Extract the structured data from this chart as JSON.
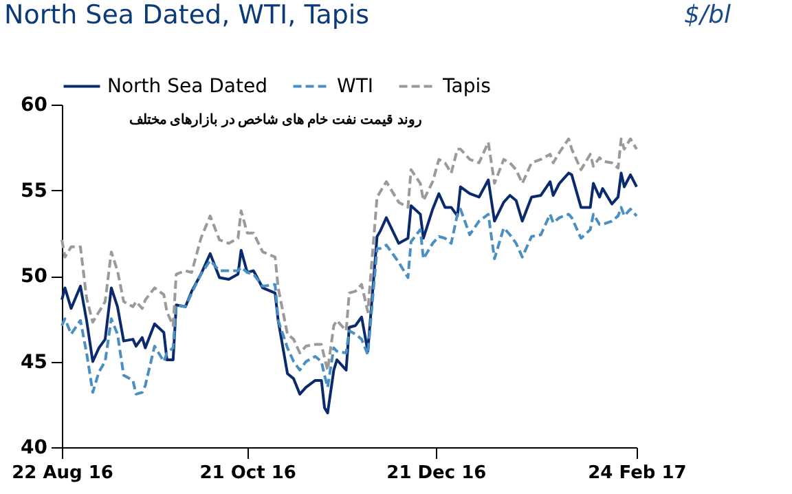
{
  "chart_data": {
    "type": "line",
    "title": "North Sea Dated, WTI, Tapis",
    "ylabel": "$/bl",
    "annotations": [
      "روند قیمت نفت خام های شاخص در بازارهای مختلف"
    ],
    "x": [
      "2016-08-22",
      "2016-08-23",
      "2016-08-25",
      "2016-08-28",
      "2016-08-30",
      "2016-09-01",
      "2016-09-03",
      "2016-09-05",
      "2016-09-07",
      "2016-09-09",
      "2016-09-11",
      "2016-09-14",
      "2016-09-15",
      "2016-09-17",
      "2016-09-18",
      "2016-09-21",
      "2016-09-24",
      "2016-09-25",
      "2016-09-27",
      "2016-09-28",
      "2016-10-01",
      "2016-10-03",
      "2016-10-06",
      "2016-10-09",
      "2016-10-12",
      "2016-10-15",
      "2016-10-18",
      "2016-10-19",
      "2016-10-21",
      "2016-10-23",
      "2016-10-26",
      "2016-10-30",
      "2016-10-31",
      "2016-11-03",
      "2016-11-05",
      "2016-11-07",
      "2016-11-09",
      "2016-11-12",
      "2016-11-14",
      "2016-11-15",
      "2016-11-16",
      "2016-11-18",
      "2016-11-19",
      "2016-11-22",
      "2016-11-23",
      "2016-11-25",
      "2016-11-27",
      "2016-11-29",
      "2016-12-02",
      "2016-12-03",
      "2016-12-05",
      "2016-12-09",
      "2016-12-12",
      "2016-12-13",
      "2016-12-16",
      "2016-12-17",
      "2016-12-20",
      "2016-12-22",
      "2016-12-24",
      "2016-12-26",
      "2016-12-28",
      "2016-12-29",
      "2017-01-01",
      "2017-01-04",
      "2017-01-07",
      "2017-01-09",
      "2017-01-12",
      "2017-01-14",
      "2017-01-16",
      "2017-01-18",
      "2017-01-21",
      "2017-01-24",
      "2017-01-27",
      "2017-01-28",
      "2017-01-30",
      "2017-02-02",
      "2017-02-03",
      "2017-02-06",
      "2017-02-09",
      "2017-02-10",
      "2017-02-12",
      "2017-02-13",
      "2017-02-16",
      "2017-02-18",
      "2017-02-19",
      "2017-02-20",
      "2017-02-22",
      "2017-02-24"
    ],
    "series": [
      {
        "name": "North Sea Dated",
        "color": "#0b2a6e",
        "line_style": "solid",
        "values": [
          48.6,
          49.3,
          48.1,
          49.4,
          47.4,
          45.0,
          45.8,
          46.3,
          49.3,
          48.2,
          46.2,
          46.3,
          45.9,
          46.4,
          45.8,
          47.2,
          46.7,
          45.1,
          45.1,
          48.3,
          48.2,
          49.1,
          50.1,
          51.3,
          49.9,
          49.8,
          50.1,
          51.5,
          50.2,
          50.3,
          49.3,
          49.0,
          47.4,
          44.3,
          44.0,
          43.1,
          43.5,
          43.9,
          43.9,
          42.3,
          42.0,
          44.5,
          45.1,
          44.5,
          47.0,
          47.1,
          47.6,
          45.6,
          52.3,
          52.6,
          53.4,
          51.9,
          52.2,
          54.1,
          53.6,
          52.2,
          53.9,
          54.8,
          54.0,
          54.0,
          53.5,
          55.2,
          54.8,
          54.6,
          55.6,
          53.2,
          54.3,
          54.7,
          54.4,
          53.2,
          54.6,
          54.7,
          55.5,
          54.7,
          55.4,
          56.0,
          55.9,
          54.0,
          54.0,
          55.4,
          54.6,
          55.1,
          54.2,
          54.6,
          56.0,
          55.2,
          55.9,
          55.2
        ]
      },
      {
        "name": "WTI",
        "color": "#4a8fc2",
        "line_style": "dashed",
        "values": [
          47.1,
          47.5,
          46.6,
          47.4,
          45.5,
          43.2,
          44.4,
          45.0,
          47.5,
          46.6,
          44.2,
          43.9,
          43.1,
          43.2,
          43.6,
          45.9,
          45.0,
          45.5,
          45.8,
          48.3,
          48.2,
          49.0,
          50.1,
          50.9,
          50.3,
          50.3,
          50.3,
          50.5,
          50.2,
          50.1,
          49.4,
          49.5,
          47.4,
          45.8,
          45.0,
          44.5,
          45.0,
          45.3,
          45.0,
          44.2,
          43.5,
          45.8,
          45.6,
          45.5,
          46.8,
          46.6,
          46.3,
          45.4,
          51.6,
          51.6,
          51.8,
          50.8,
          49.9,
          52.0,
          52.7,
          51.0,
          51.9,
          52.3,
          52.2,
          51.9,
          53.6,
          53.9,
          52.4,
          53.2,
          53.6,
          51.0,
          52.8,
          52.4,
          51.9,
          51.1,
          52.3,
          52.4,
          53.6,
          53.1,
          53.4,
          53.6,
          53.4,
          52.2,
          52.7,
          53.6,
          53.0,
          53.0,
          53.2,
          53.5,
          54.0,
          53.5,
          53.9,
          53.5
        ]
      },
      {
        "name": "Tapis",
        "color": "#9a9a9a",
        "line_style": "dashed",
        "values": [
          52.1,
          51.1,
          51.7,
          51.7,
          48.7,
          47.3,
          47.9,
          48.5,
          51.4,
          50.3,
          48.5,
          48.2,
          48.5,
          48.1,
          48.6,
          49.3,
          48.9,
          47.9,
          47.1,
          50.1,
          50.3,
          50.2,
          52.2,
          53.5,
          52.1,
          51.9,
          52.2,
          53.8,
          52.5,
          52.5,
          51.4,
          51.1,
          49.3,
          46.6,
          46.3,
          45.5,
          45.9,
          46.0,
          46.0,
          45.2,
          44.5,
          47.1,
          47.4,
          46.8,
          49.0,
          49.1,
          49.5,
          47.9,
          54.6,
          54.9,
          55.5,
          54.3,
          54.0,
          56.2,
          55.4,
          54.4,
          55.5,
          56.8,
          56.6,
          56.0,
          57.4,
          57.4,
          56.8,
          56.6,
          57.8,
          55.4,
          56.8,
          56.6,
          56.2,
          55.4,
          56.6,
          56.8,
          57.1,
          56.6,
          57.2,
          58.0,
          57.4,
          56.2,
          57.1,
          56.4,
          56.9,
          56.7,
          56.6,
          56.3,
          58.0,
          57.4,
          58.0,
          57.4
        ]
      }
    ],
    "xlim": [
      "2016-08-22",
      "2017-02-24"
    ],
    "xticks": [
      {
        "value": "2016-08-22",
        "label": "22 Aug 16"
      },
      {
        "value": "2016-10-21",
        "label": "21 Oct 16"
      },
      {
        "value": "2016-12-21",
        "label": "21 Dec 16"
      },
      {
        "value": "2017-02-24",
        "label": "24 Feb 17"
      }
    ],
    "ylim": [
      40,
      60
    ],
    "yticks": [
      40,
      45,
      50,
      55,
      60
    ],
    "grid": false,
    "legend": "top",
    "marker": "none"
  }
}
